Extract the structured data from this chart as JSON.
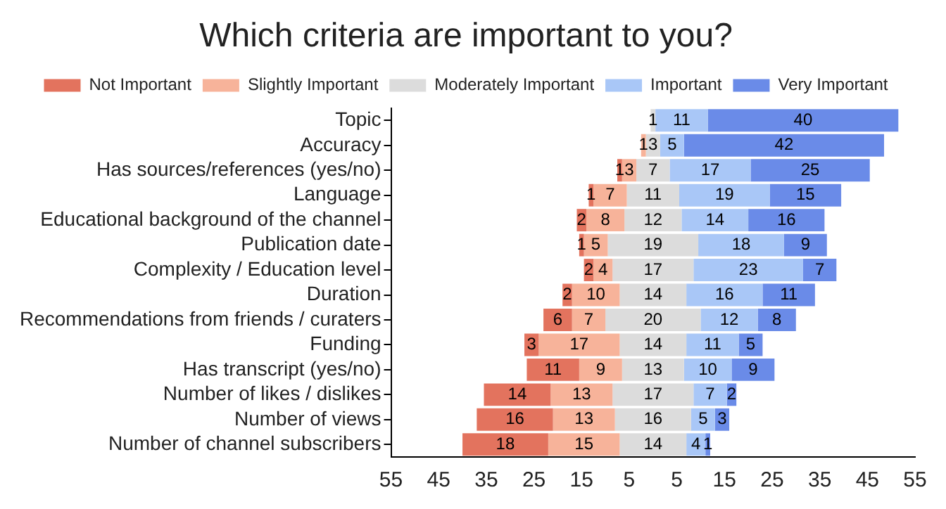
{
  "chart_data": {
    "type": "bar",
    "title": "Which criteria are important to you?",
    "orientation": "horizontal",
    "legend": "top",
    "grid": false,
    "categories": [
      "Topic",
      "Accuracy",
      "Has sources/references (yes/no)",
      "Language",
      "Educational background of the channel",
      "Publication date",
      "Complexity / Education level",
      "Duration",
      "Recommendations from friends / curaters",
      "Funding",
      "Has transcript (yes/no)",
      "Number of likes / dislikes",
      "Number of views",
      "Number of channel subscribers"
    ],
    "xlim": [
      -55,
      55
    ],
    "xticks": [
      {
        "value": -55,
        "label": "55"
      },
      {
        "value": -45,
        "label": "45"
      },
      {
        "value": -35,
        "label": "35"
      },
      {
        "value": -25,
        "label": "25"
      },
      {
        "value": -15,
        "label": "15"
      },
      {
        "value": -5,
        "label": "5"
      },
      {
        "value": 5,
        "label": "5"
      },
      {
        "value": 15,
        "label": "15"
      },
      {
        "value": 25,
        "label": "25"
      },
      {
        "value": 35,
        "label": "35"
      },
      {
        "value": 45,
        "label": "45"
      },
      {
        "value": 55,
        "label": "55"
      }
    ],
    "series": [
      {
        "name": "Not Important",
        "color": "#e3735e",
        "values": [
          0,
          0,
          1,
          1,
          2,
          1,
          2,
          2,
          6,
          3,
          11,
          14,
          16,
          18
        ],
        "base": [
          null,
          null,
          -7.5,
          -13.5,
          -16,
          -15.5,
          -14.5,
          -19,
          -23,
          -27,
          -26.5,
          -35.5,
          -37,
          -40
        ],
        "value_labels": [
          null,
          null,
          "1",
          "1",
          "2",
          "1",
          "2",
          "2",
          "6",
          "3",
          "11",
          "14",
          "16",
          "18"
        ]
      },
      {
        "name": "Slightly Important",
        "color": "#f7b39a",
        "values": [
          0,
          1,
          3,
          7,
          8,
          5,
          4,
          10,
          7,
          17,
          9,
          13,
          13,
          15
        ],
        "base": [
          null,
          -2.5,
          -6.5,
          -12.5,
          -14,
          -14.5,
          -12.5,
          -17,
          -17,
          -24,
          -15.5,
          -21.5,
          -21,
          -22
        ],
        "value_labels": [
          null,
          "1",
          "3",
          "7",
          "8",
          "5",
          "4",
          "10",
          "7",
          "17",
          "9",
          "13",
          "13",
          "15"
        ]
      },
      {
        "name": "Moderately Important",
        "color": "#dcdcdc",
        "values": [
          1,
          3,
          7,
          11,
          12,
          19,
          17,
          14,
          20,
          14,
          13,
          17,
          16,
          14
        ],
        "base": [
          -0.5,
          -1.5,
          -3.5,
          -5.5,
          -6,
          -9.5,
          -8.5,
          -7,
          -10,
          -7,
          -6.5,
          -8.5,
          -8,
          -7
        ],
        "value_labels": [
          "1",
          "3",
          "7",
          "11",
          "12",
          "19",
          "17",
          "14",
          "20",
          "14",
          "13",
          "17",
          "16",
          "14"
        ]
      },
      {
        "name": "Important",
        "color": "#a9c7f7",
        "values": [
          11,
          5,
          17,
          19,
          14,
          18,
          23,
          16,
          12,
          11,
          10,
          7,
          5,
          4
        ],
        "base": [
          0.5,
          1.5,
          3.5,
          5.5,
          6,
          9.5,
          8.5,
          7,
          10,
          7,
          6.5,
          8.5,
          8,
          7
        ],
        "value_labels": [
          "11",
          "5",
          "17",
          "19",
          "14",
          "18",
          "23",
          "16",
          "12",
          "11",
          "10",
          "7",
          "5",
          "4"
        ]
      },
      {
        "name": "Very Important",
        "color": "#6a8be8",
        "values": [
          40,
          42,
          25,
          15,
          16,
          9,
          7,
          11,
          8,
          5,
          9,
          2,
          3,
          1
        ],
        "base": [
          11.5,
          6.5,
          20.5,
          24.5,
          20,
          27.5,
          31.5,
          23,
          22,
          18,
          16.5,
          15.5,
          13,
          11
        ],
        "value_labels": [
          "40",
          "42",
          "25",
          "15",
          "16",
          "9",
          "7",
          "11",
          "8",
          "5",
          "9",
          "2",
          "3",
          "1"
        ]
      }
    ]
  }
}
